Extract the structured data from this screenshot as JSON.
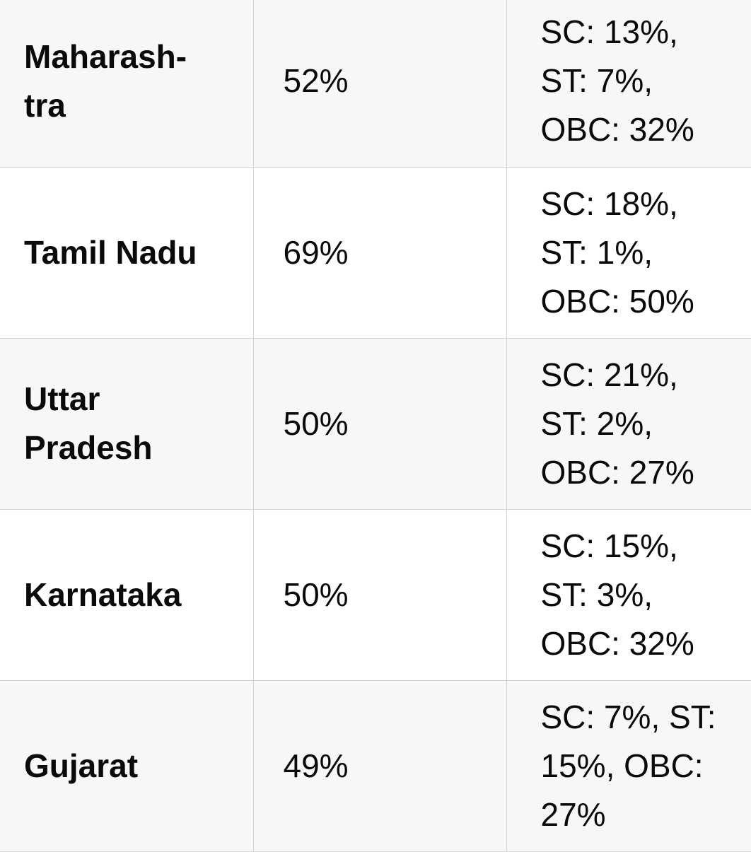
{
  "rows": [
    {
      "state": [
        "Maharash-",
        "tra"
      ],
      "total": "52%",
      "breakdown": [
        "SC: 13%,",
        "ST: 7%,",
        "OBC: 32%"
      ]
    },
    {
      "state": [
        "Tamil Nadu"
      ],
      "total": "69%",
      "breakdown": [
        "SC: 18%,",
        "ST: 1%,",
        "OBC: 50%"
      ]
    },
    {
      "state": [
        "Uttar",
        "Pradesh"
      ],
      "total": "50%",
      "breakdown": [
        "SC: 21%,",
        "ST: 2%,",
        "OBC: 27%"
      ]
    },
    {
      "state": [
        "Karnataka"
      ],
      "total": "50%",
      "breakdown": [
        "SC: 15%,",
        "ST: 3%,",
        "OBC: 32%"
      ]
    },
    {
      "state": [
        "Gujarat"
      ],
      "total": "49%",
      "breakdown": [
        "SC: 7%, ST:",
        "15%, OBC:",
        "27%"
      ]
    }
  ]
}
